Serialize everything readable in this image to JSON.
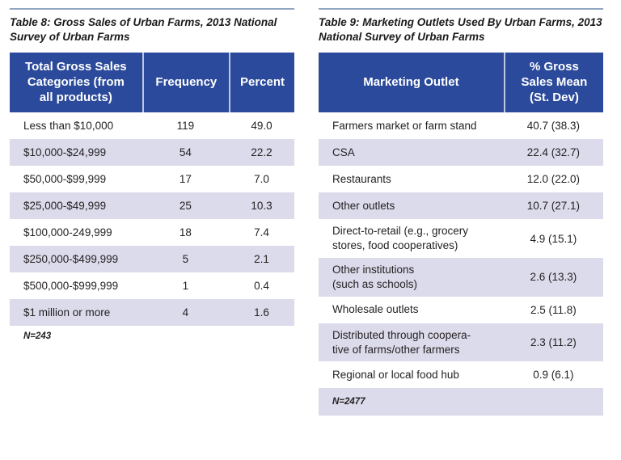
{
  "colors": {
    "header_bg": "#2b4a9b",
    "header_text": "#ffffff",
    "row_alt_bg": "#dcdbeb",
    "top_rule": "#91a7bf",
    "body_text": "#231f20"
  },
  "table8": {
    "title": "Table 8: Gross Sales of Urban Farms, 2013 National\nSurvey of Urban Farms",
    "columns": [
      "Total Gross Sales\nCategories (from\nall products)",
      "Frequency",
      "Percent"
    ],
    "rows": [
      {
        "category": "Less than $10,000",
        "frequency": "119",
        "percent": "49.0"
      },
      {
        "category": "$10,000-$24,999",
        "frequency": "54",
        "percent": "22.2"
      },
      {
        "category": "$50,000-$99,999",
        "frequency": "17",
        "percent": "7.0"
      },
      {
        "category": "$25,000-$49,999",
        "frequency": "25",
        "percent": "10.3"
      },
      {
        "category": "$100,000-249,999",
        "frequency": "18",
        "percent": "7.4"
      },
      {
        "category": "$250,000-$499,999",
        "frequency": "5",
        "percent": "2.1"
      },
      {
        "category": "$500,000-$999,999",
        "frequency": "1",
        "percent": "0.4"
      },
      {
        "category": "$1 million or more",
        "frequency": "4",
        "percent": "1.6"
      }
    ],
    "footnote": "N=243"
  },
  "table9": {
    "title": "Table 9: Marketing Outlets Used By Urban Farms, 2013\nNational Survey of Urban Farms",
    "columns": [
      "Marketing Outlet",
      "% Gross\nSales Mean\n(St. Dev)"
    ],
    "rows": [
      {
        "outlet": "Farmers market or farm stand",
        "value": "40.7 (38.3)"
      },
      {
        "outlet": "CSA",
        "value": "22.4 (32.7)"
      },
      {
        "outlet": "Restaurants",
        "value": "12.0 (22.0)"
      },
      {
        "outlet": "Other outlets",
        "value": "10.7 (27.1)"
      },
      {
        "outlet": "Direct-to-retail (e.g., grocery\nstores, food cooperatives)",
        "value": "4.9 (15.1)"
      },
      {
        "outlet": "Other institutions\n(such as schools)",
        "value": "2.6 (13.3)"
      },
      {
        "outlet": "Wholesale outlets",
        "value": "2.5 (11.8)"
      },
      {
        "outlet": "Distributed through coopera-\ntive of farms/other farmers",
        "value": "2.3 (11.2)"
      },
      {
        "outlet": "Regional or local food hub",
        "value": "0.9 (6.1)"
      }
    ],
    "footnote": "N=2477"
  }
}
